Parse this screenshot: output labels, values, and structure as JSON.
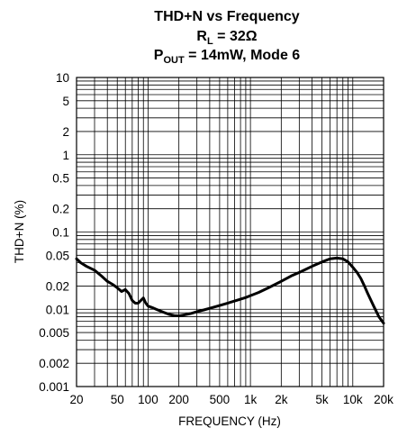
{
  "chart_data": {
    "type": "line",
    "title_line1": "THD+N vs Frequency",
    "title_line2_main": "R",
    "title_line2_sub": "L",
    "title_line2_rest": " = 32Ω",
    "title_line3_main": "P",
    "title_line3_sub": "OUT",
    "title_line3_rest": " = 14mW, Mode 6",
    "xlabel": "FREQUENCY (Hz)",
    "ylabel": "THD+N (%)",
    "x_scale": "log",
    "y_scale": "log",
    "xlim": [
      20,
      20000
    ],
    "ylim": [
      0.001,
      10
    ],
    "grid": true,
    "x_ticks": [
      {
        "value": 20,
        "label": "20"
      },
      {
        "value": 50,
        "label": "50"
      },
      {
        "value": 100,
        "label": "100"
      },
      {
        "value": 200,
        "label": "200"
      },
      {
        "value": 500,
        "label": "500"
      },
      {
        "value": 1000,
        "label": "1k"
      },
      {
        "value": 2000,
        "label": "2k"
      },
      {
        "value": 5000,
        "label": "5k"
      },
      {
        "value": 10000,
        "label": "10k"
      },
      {
        "value": 20000,
        "label": "20k"
      }
    ],
    "y_ticks": [
      {
        "value": 10,
        "label": "10"
      },
      {
        "value": 5,
        "label": "5"
      },
      {
        "value": 2,
        "label": "2"
      },
      {
        "value": 1,
        "label": "1"
      },
      {
        "value": 0.5,
        "label": "0.5"
      },
      {
        "value": 0.2,
        "label": "0.2"
      },
      {
        "value": 0.1,
        "label": "0.1"
      },
      {
        "value": 0.05,
        "label": "0.05"
      },
      {
        "value": 0.02,
        "label": "0.02"
      },
      {
        "value": 0.01,
        "label": "0.01"
      },
      {
        "value": 0.005,
        "label": "0.005"
      },
      {
        "value": 0.002,
        "label": "0.002"
      },
      {
        "value": 0.001,
        "label": "0.001"
      }
    ],
    "series": [
      {
        "x": [
          20,
          22,
          25,
          30,
          35,
          40,
          45,
          50,
          55,
          60,
          65,
          70,
          75,
          80,
          85,
          90,
          95,
          100,
          110,
          120,
          140,
          160,
          180,
          200,
          230,
          260,
          300,
          350,
          400,
          500,
          600,
          700,
          800,
          900,
          1000,
          1200,
          1500,
          2000,
          2500,
          3000,
          4000,
          5000,
          6000,
          7000,
          8000,
          9000,
          10000,
          11000,
          12000,
          13000,
          14000,
          16000,
          18000,
          20000
        ],
        "values": [
          0.045,
          0.04,
          0.036,
          0.032,
          0.027,
          0.023,
          0.021,
          0.019,
          0.017,
          0.018,
          0.016,
          0.013,
          0.012,
          0.012,
          0.013,
          0.014,
          0.012,
          0.011,
          0.0105,
          0.01,
          0.0092,
          0.0086,
          0.0083,
          0.0082,
          0.0085,
          0.0088,
          0.0093,
          0.0098,
          0.0103,
          0.0112,
          0.012,
          0.0128,
          0.0135,
          0.0142,
          0.015,
          0.0165,
          0.019,
          0.023,
          0.027,
          0.03,
          0.036,
          0.041,
          0.045,
          0.046,
          0.045,
          0.041,
          0.035,
          0.03,
          0.025,
          0.02,
          0.016,
          0.011,
          0.008,
          0.0066
        ]
      }
    ]
  }
}
